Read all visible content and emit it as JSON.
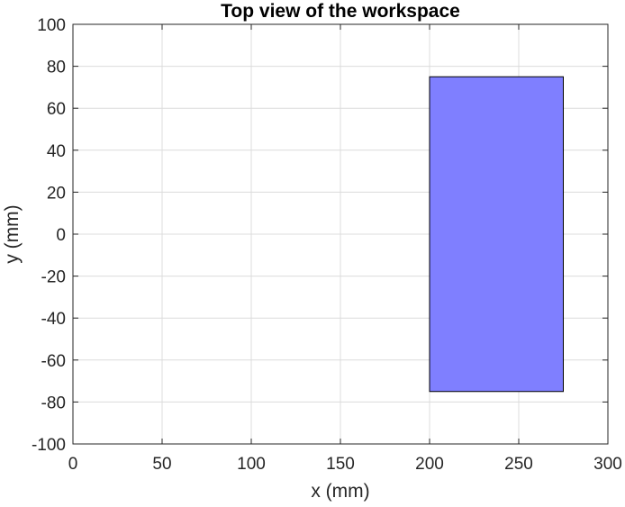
{
  "chart_data": {
    "type": "patch",
    "title": "Top view of the workspace",
    "xlabel": "x (mm)",
    "ylabel": "y (mm)",
    "xlim": [
      0,
      300
    ],
    "ylim": [
      -100,
      100
    ],
    "xticks": [
      0,
      50,
      100,
      150,
      200,
      250,
      300
    ],
    "yticks": [
      -100,
      -80,
      -60,
      -40,
      -20,
      0,
      20,
      40,
      60,
      80,
      100
    ],
    "grid": true,
    "box": true,
    "shapes": [
      {
        "kind": "rectangle",
        "x": [
          200,
          275
        ],
        "y": [
          -75,
          75
        ],
        "face_color": "#7f7fff",
        "edge_color": "#000000"
      }
    ]
  }
}
